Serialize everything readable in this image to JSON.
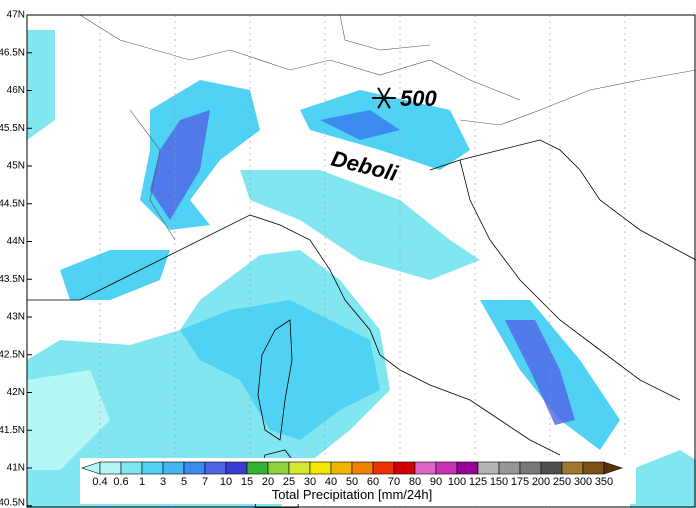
{
  "map": {
    "lat_labels": [
      "47N",
      "46.5N",
      "46N",
      "45.5N",
      "45N",
      "44.5N",
      "44N",
      "43.5N",
      "43N",
      "42.5N",
      "42N",
      "41.5N",
      "41N",
      "40.5N"
    ],
    "annotations": {
      "snow_level": "500",
      "intensity": "Deboli"
    },
    "colorbar": {
      "title": "Total Precipitation [mm/24h]",
      "levels": [
        0.4,
        0.6,
        1,
        3,
        5,
        7,
        10,
        15,
        20,
        25,
        30,
        40,
        50,
        60,
        70,
        80,
        90,
        100,
        125,
        150,
        175,
        200,
        250,
        300,
        350
      ],
      "colors": [
        "#b4f5f5",
        "#82e6f0",
        "#50d2f5",
        "#46b4f0",
        "#3c8cf0",
        "#5064e6",
        "#3c3cd2",
        "#32b432",
        "#8cd23c",
        "#d2e632",
        "#f5e600",
        "#f0b400",
        "#f08200",
        "#f03200",
        "#d20000",
        "#dc64c8",
        "#c832b4",
        "#960096",
        "#b4b4b4",
        "#969696",
        "#787878",
        "#505050",
        "#a07832",
        "#7d5014",
        "#5a320a"
      ]
    }
  }
}
